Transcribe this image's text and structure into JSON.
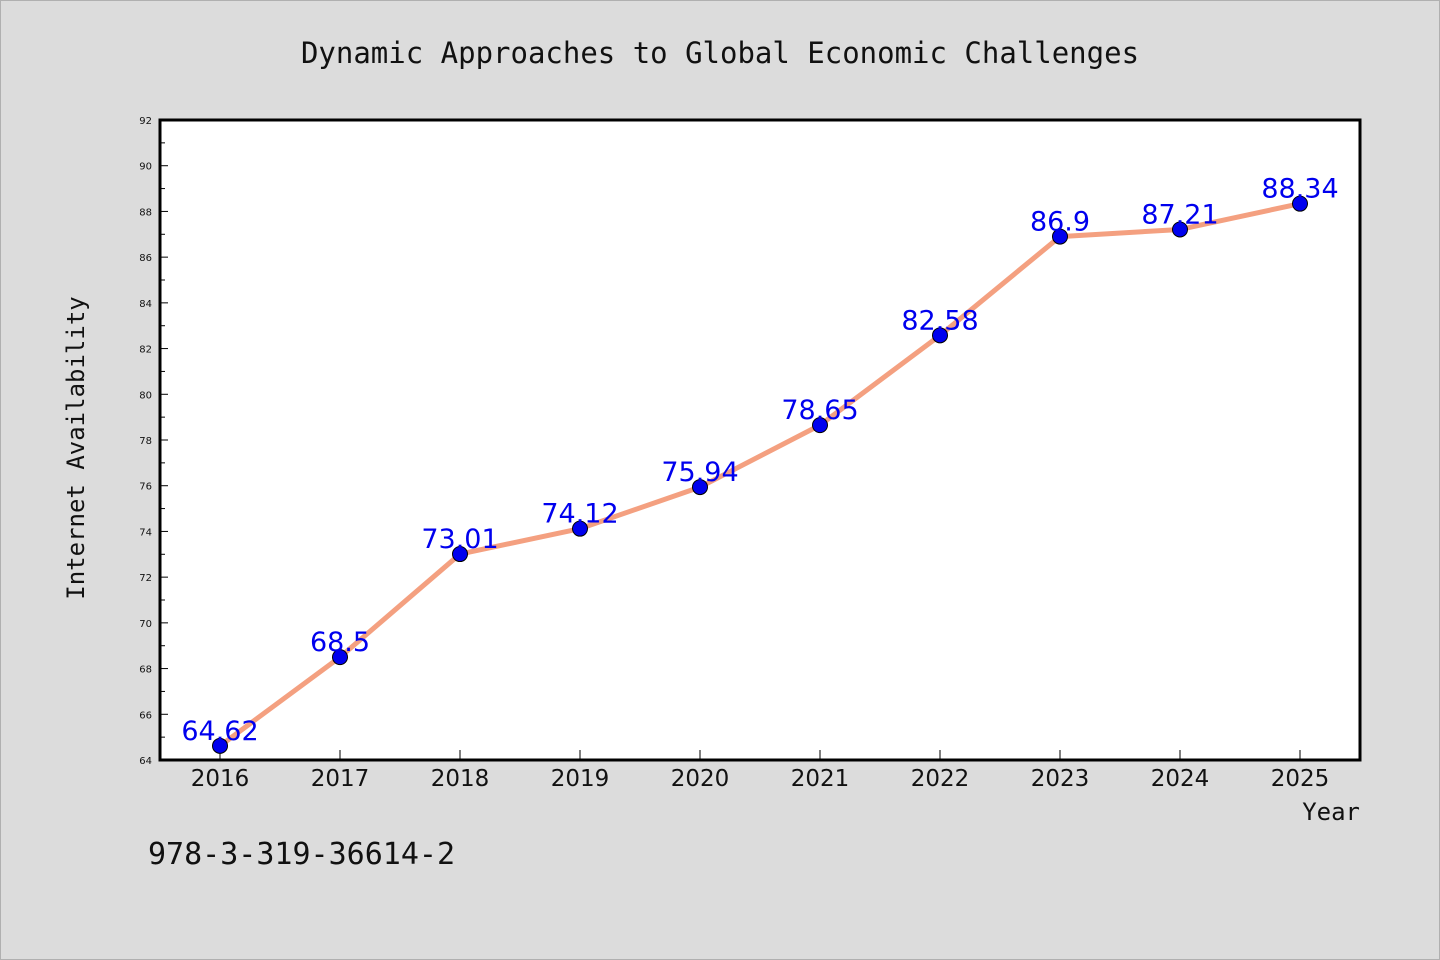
{
  "chart_data": {
    "type": "line",
    "title": "Dynamic Approaches to Global Economic Challenges",
    "xlabel": "Year",
    "ylabel": "Internet Availability",
    "categories": [
      "2016",
      "2017",
      "2018",
      "2019",
      "2020",
      "2021",
      "2022",
      "2023",
      "2024",
      "2025"
    ],
    "series": [
      {
        "values": [
          64.62,
          68.5,
          73.01,
          74.12,
          75.94,
          78.65,
          82.58,
          86.9,
          87.21,
          88.34
        ]
      }
    ],
    "data_labels": [
      "64.62",
      "68.5",
      "73.01",
      "74.12",
      "75.94",
      "78.65",
      "82.58",
      "86.9",
      "87.21",
      "88.34"
    ],
    "ylim": [
      64,
      92
    ],
    "yticks": [
      64,
      66,
      68,
      70,
      72,
      74,
      76,
      78,
      80,
      82,
      84,
      86,
      88,
      90,
      92
    ],
    "grid": false,
    "line_color": "#f4a080",
    "marker_color": "#0000ee",
    "label_color": "#0000ee"
  },
  "footnote": "978-3-319-36614-2"
}
